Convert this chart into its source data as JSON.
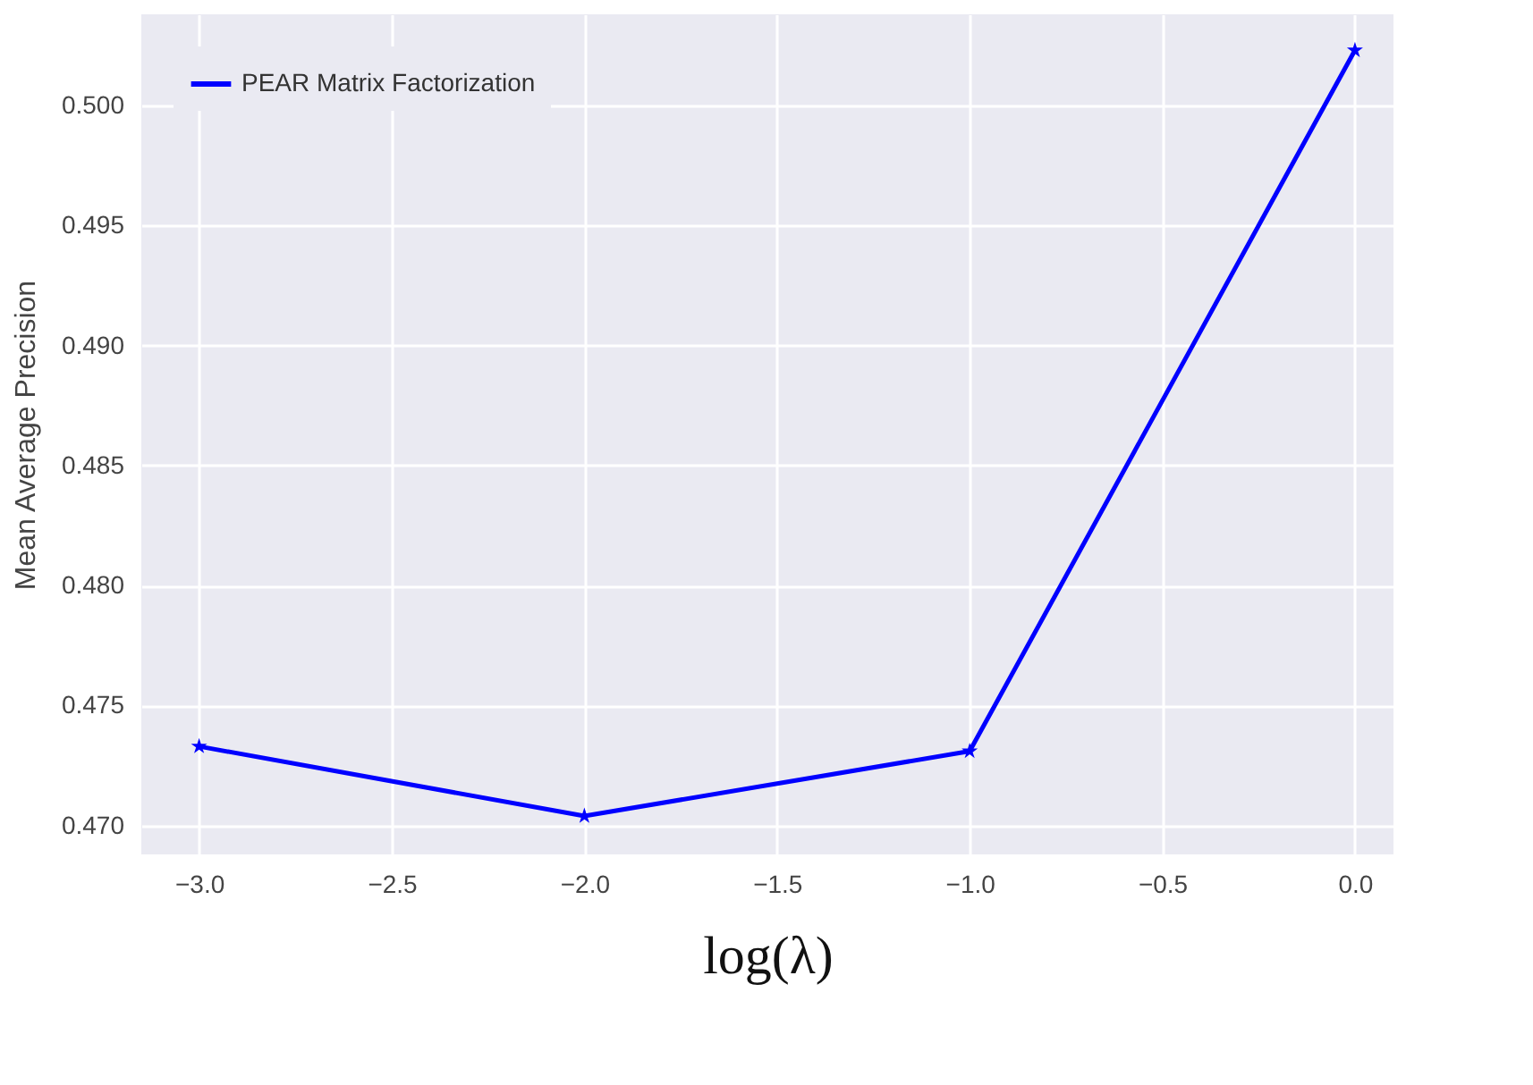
{
  "chart_data": {
    "type": "line",
    "xlabel": "log(λ)",
    "ylabel": "Mean Average Precision",
    "x": [
      -3.0,
      -2.0,
      -1.0,
      0.0
    ],
    "series": [
      {
        "name": "PEAR Matrix Factorization",
        "color": "#0000ff",
        "values": [
          0.4733,
          0.4704,
          0.4731,
          0.5023
        ]
      }
    ],
    "xlim": [
      -3.15,
      0.1
    ],
    "xticks": [
      {
        "value": -3.0,
        "label": "−3.0"
      },
      {
        "value": -2.5,
        "label": "−2.5"
      },
      {
        "value": -2.0,
        "label": "−2.0"
      },
      {
        "value": -1.5,
        "label": "−1.5"
      },
      {
        "value": -1.0,
        "label": "−1.0"
      },
      {
        "value": -0.5,
        "label": "−0.5"
      },
      {
        "value": 0.0,
        "label": "0.0"
      }
    ],
    "ylim": [
      0.4688,
      0.5038
    ],
    "yticks": [
      {
        "value": 0.47,
        "label": "0.470"
      },
      {
        "value": 0.475,
        "label": "0.475"
      },
      {
        "value": 0.48,
        "label": "0.480"
      },
      {
        "value": 0.485,
        "label": "0.485"
      },
      {
        "value": 0.49,
        "label": "0.490"
      },
      {
        "value": 0.495,
        "label": "0.495"
      },
      {
        "value": 0.5,
        "label": "0.500"
      }
    ],
    "grid": true,
    "legend": "top left",
    "marker": "star",
    "line_style": "solid"
  }
}
